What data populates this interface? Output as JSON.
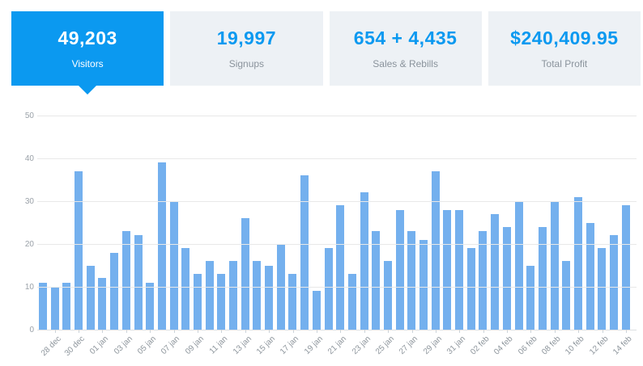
{
  "cards": [
    {
      "value": "49,203",
      "label": "Visitors",
      "active": true
    },
    {
      "value": "19,997",
      "label": "Signups",
      "active": false
    },
    {
      "value": "654 + 4,435",
      "label": "Sales & Rebills",
      "active": false
    },
    {
      "value": "$240,409.95",
      "label": "Total Profit",
      "active": false
    }
  ],
  "colors": {
    "accent_blue": "#0b99f0",
    "bar_blue": "#74b0ee",
    "card_bg": "#edf1f5",
    "label_gray": "#8a939c"
  },
  "chart_data": {
    "type": "bar",
    "title": "",
    "xlabel": "",
    "ylabel": "",
    "ylim": [
      0,
      50
    ],
    "yticks": [
      0,
      10,
      20,
      30,
      40,
      50
    ],
    "grid": true,
    "values": [
      11,
      10,
      11,
      37,
      15,
      12,
      18,
      23,
      22,
      11,
      39,
      30,
      19,
      13,
      16,
      13,
      16,
      26,
      16,
      15,
      20,
      13,
      36,
      9,
      19,
      29,
      13,
      32,
      23,
      16,
      28,
      23,
      21,
      37,
      28,
      28,
      19,
      23,
      27,
      24,
      30,
      15,
      24,
      30,
      16,
      31,
      25,
      19,
      22,
      29
    ],
    "tick_labels": [
      "28 dec",
      "30 dec",
      "01 jan",
      "03 jan",
      "05 jan",
      "07 jan",
      "09 jan",
      "11 jan",
      "13 jan",
      "15 jan",
      "17 jan",
      "19 jan",
      "21 jan",
      "23 jan",
      "25 jan",
      "27 jan",
      "29 jan",
      "31 jan",
      "02 feb",
      "04 feb",
      "06 feb",
      "08 feb",
      "10 feb",
      "12 feb",
      "14 feb"
    ],
    "tick_every": 2,
    "tick_offset": 1
  }
}
